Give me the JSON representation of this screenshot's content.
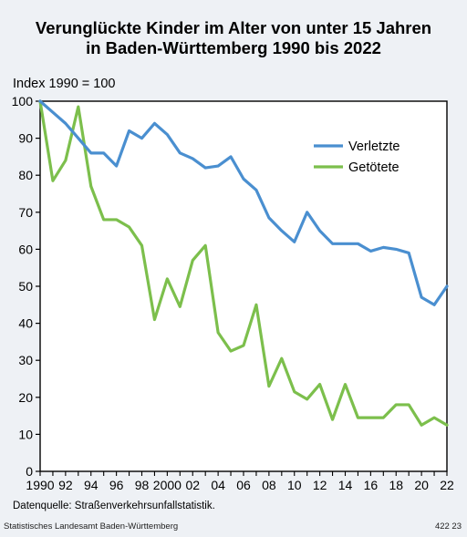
{
  "header": {
    "title_line1": "Verunglückte Kinder im Alter von unter 15 Jahren",
    "title_line2": "in Baden-Württemberg 1990 bis 2022"
  },
  "source": "Datenquelle: Straßenverkehrsunfallstatistik.",
  "footer": {
    "publisher": "Statistisches Landesamt Baden-Württemberg",
    "code": "422 23"
  },
  "chart_data": {
    "type": "line",
    "ylabel": "Index 1990 = 100",
    "xlabel": "",
    "xlim": [
      1990,
      2022
    ],
    "ylim": [
      0,
      100
    ],
    "y_ticks": [
      0,
      10,
      20,
      30,
      40,
      50,
      60,
      70,
      80,
      90,
      100
    ],
    "x_ticks": [
      {
        "value": 1990,
        "label": "1990"
      },
      {
        "value": 1992,
        "label": "92"
      },
      {
        "value": 1994,
        "label": "94"
      },
      {
        "value": 1996,
        "label": "96"
      },
      {
        "value": 1998,
        "label": "98"
      },
      {
        "value": 2000,
        "label": "2000"
      },
      {
        "value": 2002,
        "label": "02"
      },
      {
        "value": 2004,
        "label": "04"
      },
      {
        "value": 2006,
        "label": "06"
      },
      {
        "value": 2008,
        "label": "08"
      },
      {
        "value": 2010,
        "label": "10"
      },
      {
        "value": 2012,
        "label": "12"
      },
      {
        "value": 2014,
        "label": "14"
      },
      {
        "value": 2016,
        "label": "16"
      },
      {
        "value": 2018,
        "label": "18"
      },
      {
        "value": 2020,
        "label": "20"
      },
      {
        "value": 2022,
        "label": "22"
      }
    ],
    "legend_position": "upper-right",
    "grid": false,
    "x": [
      1990,
      1991,
      1992,
      1993,
      1994,
      1995,
      1996,
      1997,
      1998,
      1999,
      2000,
      2001,
      2002,
      2003,
      2004,
      2005,
      2006,
      2007,
      2008,
      2009,
      2010,
      2011,
      2012,
      2013,
      2014,
      2015,
      2016,
      2017,
      2018,
      2019,
      2020,
      2021,
      2022
    ],
    "series": [
      {
        "name": "Verletzte",
        "color": "#4a8fd0",
        "values": [
          100,
          97,
          94,
          90,
          86,
          86,
          82.5,
          92,
          90,
          94,
          91,
          86,
          84.5,
          82,
          82.5,
          85,
          79,
          76,
          68.5,
          65,
          62,
          70,
          65,
          61.5,
          61.5,
          61.5,
          59.5,
          60.5,
          60,
          59,
          47,
          45,
          50
        ]
      },
      {
        "name": "Getötete",
        "color": "#7cbf4c",
        "values": [
          100,
          78.5,
          84,
          98.5,
          77,
          68,
          68,
          66,
          61,
          41,
          52,
          44.5,
          57,
          61,
          37.5,
          32.5,
          34,
          45,
          23,
          30.5,
          21.5,
          19.5,
          23.5,
          14,
          23.5,
          14.5,
          14.5,
          14.5,
          18,
          18,
          12.5,
          14.5,
          12.5
        ]
      }
    ]
  }
}
